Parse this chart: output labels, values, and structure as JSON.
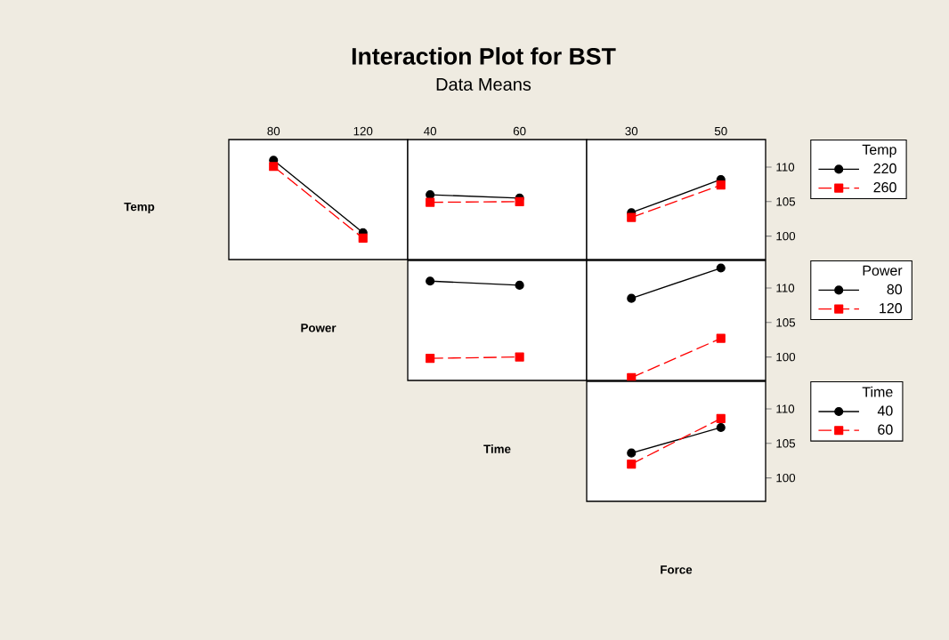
{
  "chart_data": [
    {
      "type": "other",
      "title": "Interaction Plot for BST",
      "subtitle": "Data Means"
    },
    {
      "type": "line",
      "xlabel": "Power",
      "ylabel": "Temp",
      "x": [
        80,
        120
      ],
      "xlim": [
        60,
        140
      ],
      "xticks": [
        80,
        120
      ],
      "ylim": [
        96.6,
        114
      ],
      "yticks": [
        100,
        105,
        110
      ],
      "tick_labels": "x",
      "series": [
        {
          "color": "#000000",
          "marker": "circle",
          "line_style": "solid",
          "values": [
            111.0,
            100.5
          ]
        },
        {
          "color": "#ff0000",
          "marker": "square",
          "line_style": "dashed",
          "values": [
            110.1,
            99.7
          ]
        }
      ]
    },
    {
      "type": "line",
      "x": [
        40,
        60
      ],
      "xlim": [
        35,
        75
      ],
      "xticks": [
        40,
        60
      ],
      "ylim": [
        96.6,
        114
      ],
      "yticks": [
        100,
        105,
        110
      ],
      "tick_labels": "x",
      "series": [
        {
          "color": "#000000",
          "marker": "circle",
          "line_style": "solid",
          "values": [
            106.0,
            105.5
          ]
        },
        {
          "color": "#ff0000",
          "marker": "square",
          "line_style": "dashed",
          "values": [
            104.9,
            105.0
          ]
        }
      ]
    },
    {
      "type": "line",
      "x": [
        30,
        50
      ],
      "xlim": [
        20,
        60
      ],
      "xticks": [
        30,
        50
      ],
      "ylim": [
        96.6,
        114
      ],
      "yticks": [
        100,
        105,
        110
      ],
      "legend": "right",
      "legend_title": "Temp",
      "series": [
        {
          "name": "220",
          "color": "#000000",
          "marker": "circle",
          "line_style": "solid",
          "values": [
            103.4,
            108.2
          ]
        },
        {
          "name": "260",
          "color": "#ff0000",
          "marker": "square",
          "line_style": "dashed",
          "values": [
            102.7,
            107.4
          ]
        }
      ]
    },
    {
      "type": "line",
      "xlabel": "Time",
      "x": [
        40,
        60
      ],
      "xlim": [
        35,
        75
      ],
      "xticks": [
        40,
        60
      ],
      "ylim": [
        96.6,
        114
      ],
      "yticks": [
        100,
        105,
        110
      ],
      "tick_labels": false,
      "series": [
        {
          "color": "#000000",
          "marker": "circle",
          "line_style": "solid",
          "values": [
            111.0,
            110.4
          ]
        },
        {
          "color": "#ff0000",
          "marker": "square",
          "line_style": "dashed",
          "values": [
            99.8,
            100.0
          ]
        }
      ]
    },
    {
      "type": "line",
      "x": [
        30,
        50
      ],
      "xlim": [
        20,
        60
      ],
      "xticks": [
        30,
        50
      ],
      "ylim": [
        96.6,
        114
      ],
      "yticks": [
        100,
        105,
        110
      ],
      "tick_labels": "y",
      "legend": "right",
      "legend_title": "Power",
      "series": [
        {
          "name": "80",
          "color": "#000000",
          "marker": "circle",
          "line_style": "solid",
          "values": [
            108.5,
            112.9
          ]
        },
        {
          "name": "120",
          "color": "#ff0000",
          "marker": "square",
          "line_style": "dashed",
          "values": [
            97.0,
            102.7
          ]
        }
      ]
    },
    {
      "type": "line",
      "xlabel": "Force",
      "x": [
        30,
        50
      ],
      "xlim": [
        20,
        60
      ],
      "xticks": [
        30,
        50
      ],
      "ylim": [
        96.6,
        114
      ],
      "yticks": [
        100,
        105,
        110
      ],
      "tick_labels": "y",
      "legend": "right",
      "legend_title": "Time",
      "series": [
        {
          "name": "40",
          "color": "#000000",
          "marker": "circle",
          "line_style": "solid",
          "values": [
            103.6,
            107.3
          ]
        },
        {
          "name": "60",
          "color": "#ff0000",
          "marker": "square",
          "line_style": "dashed",
          "values": [
            102.0,
            108.6
          ]
        }
      ]
    }
  ]
}
